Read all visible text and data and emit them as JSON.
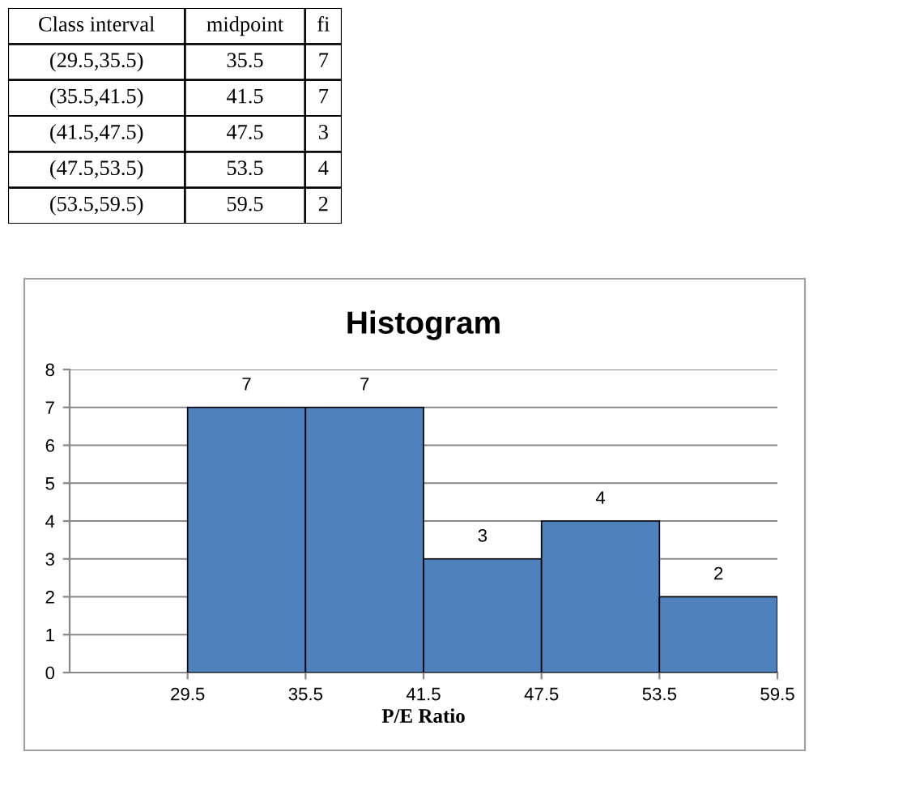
{
  "chart_data": {
    "type": "histogram",
    "title": "Histogram",
    "xlabel": "P/E Ratio",
    "bins": [
      29.5,
      35.5,
      41.5,
      47.5,
      53.5,
      59.5
    ],
    "values": [
      7,
      7,
      3,
      4,
      2
    ],
    "color": "#4f81bd",
    "xlim": [
      23.5,
      59.5
    ],
    "xticks": [
      29.5,
      35.5,
      41.5,
      47.5,
      53.5,
      59.5
    ],
    "ylim": [
      0,
      8
    ],
    "yticks": [
      0,
      1,
      2,
      3,
      4,
      5,
      6,
      7,
      8
    ],
    "grid": "y",
    "data_labels": true,
    "annotations": [
      "Class interval",
      "midpoint",
      "fi",
      "(29.5,35.5)",
      "35.5",
      "7",
      "(35.5,41.5)",
      "41.5",
      "7",
      "(41.5,47.5)",
      "47.5",
      "3",
      "(47.5,53.5)",
      "53.5",
      "4",
      "(53.5,59.5)",
      "59.5",
      "2"
    ]
  }
}
